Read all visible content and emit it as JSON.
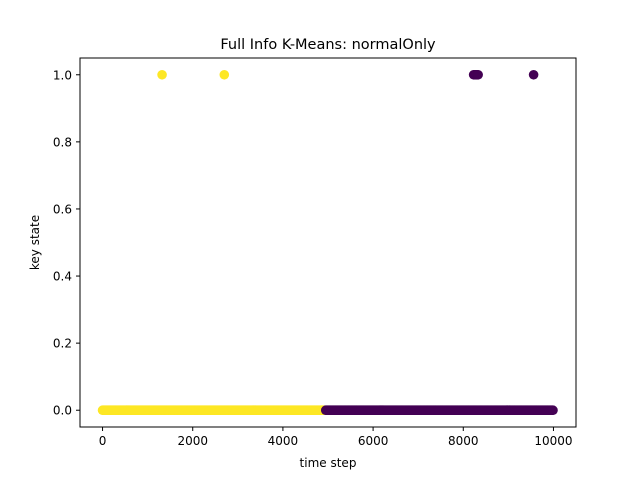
{
  "chart_data": {
    "type": "scatter",
    "title": "Full Info K-Means: normalOnly",
    "xlabel": "time step",
    "ylabel": "key state",
    "xlim": [
      -500,
      10500
    ],
    "ylim": [
      -0.05,
      1.05
    ],
    "xticks": [
      0,
      2000,
      4000,
      6000,
      8000,
      10000
    ],
    "xtick_labels": [
      "0",
      "2000",
      "4000",
      "6000",
      "8000",
      "10000"
    ],
    "yticks": [
      0.0,
      0.2,
      0.4,
      0.6,
      0.8,
      1.0
    ],
    "ytick_labels": [
      "0.0",
      "0.2",
      "0.4",
      "0.6",
      "0.8",
      "1.0"
    ],
    "grid": false,
    "legend": "none",
    "colors": {
      "cluster_0": "#440154",
      "cluster_1": "#fde725"
    },
    "series": [
      {
        "color": "#fde725",
        "x_range_key_state_0": [
          0,
          4950
        ],
        "points_key_state_1": [
          1320,
          2700
        ]
      },
      {
        "color": "#440154",
        "x_range_key_state_0": [
          4950,
          10000
        ],
        "points_key_state_1": [
          8230,
          8250,
          8270,
          8290,
          8310,
          8330,
          9560
        ]
      }
    ]
  }
}
